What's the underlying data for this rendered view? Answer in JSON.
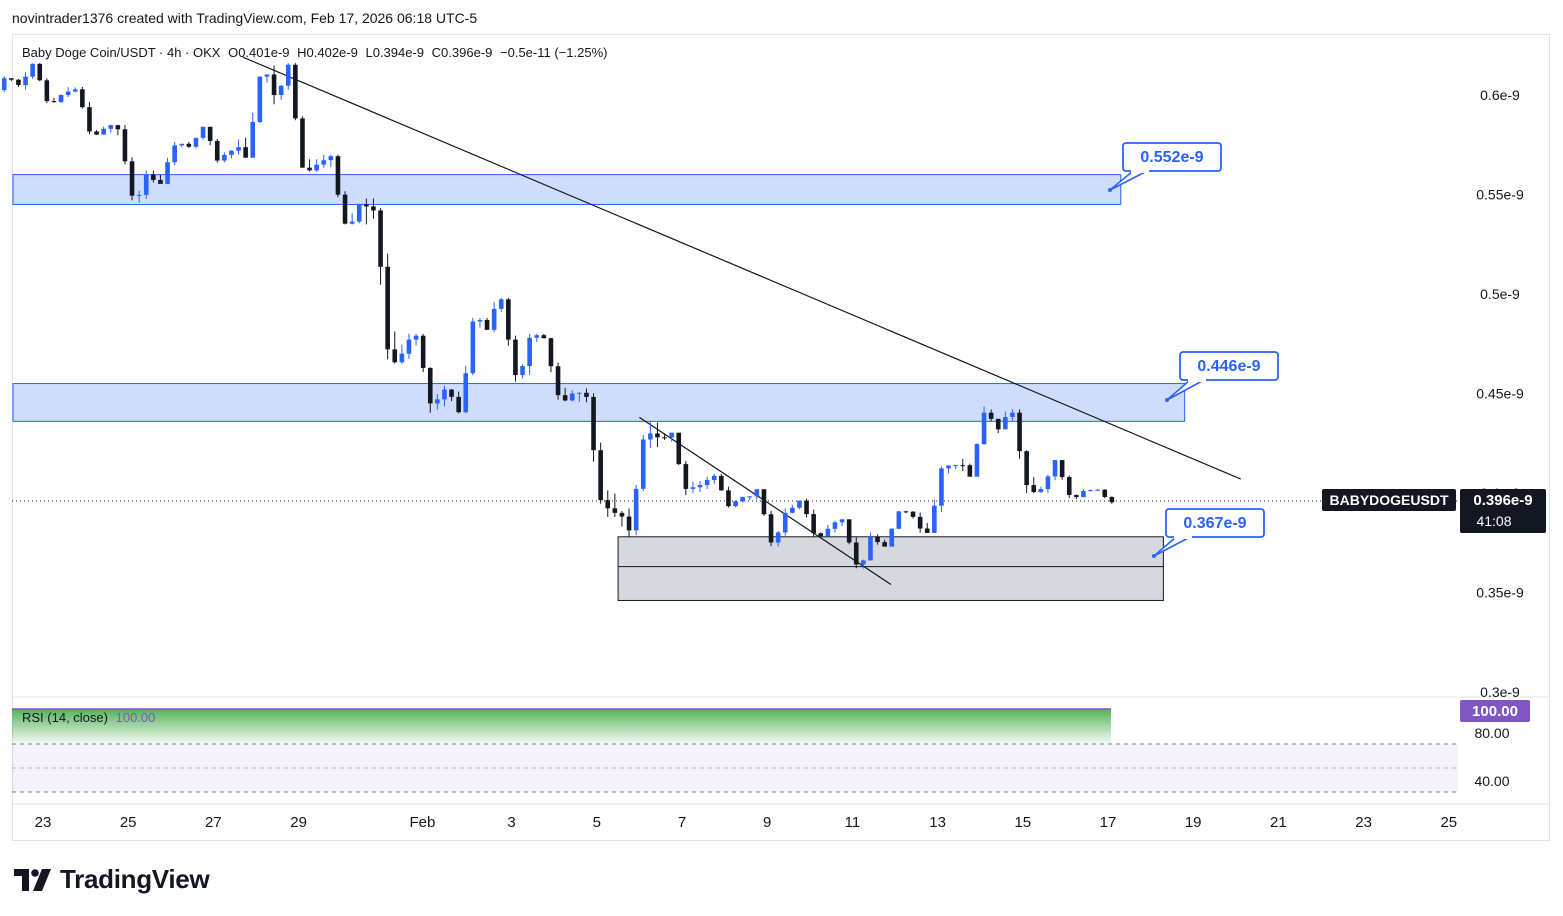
{
  "header": {
    "attribution": "novintrader1376 created with TradingView.com, Feb 17, 2026 06:18 UTC-5"
  },
  "legend": {
    "symbol": "Baby Doge Coin/USDT · 4h · OKX",
    "open": "O0.401e-9",
    "high": "H0.402e-9",
    "low": "L0.394e-9",
    "close": "C0.396e-9",
    "change": "−0.5e-11 (−1.25%)"
  },
  "rsi_legend": {
    "label": "RSI (14, close)",
    "value": "100.00"
  },
  "price_scale": {
    "ticks": [
      "0.6e-9",
      "0.55e-9",
      "0.5e-9",
      "0.45e-9",
      "0.4e-9",
      "0.35e-9",
      "0.3e-9"
    ],
    "current_price": "0.396e-9",
    "countdown": "41:08",
    "symbol_tag": "BABYDOGEUSDT"
  },
  "rsi_scale": {
    "ticks": [
      "80.00",
      "40.00"
    ],
    "current": "100.00"
  },
  "time_axis": {
    "labels": [
      "23",
      "25",
      "27",
      "29",
      "Feb",
      "3",
      "5",
      "7",
      "9",
      "11",
      "13",
      "15",
      "17",
      "19",
      "21",
      "23",
      "25"
    ]
  },
  "annotations": {
    "callout_top": "0.552e-9",
    "callout_mid": "0.446e-9",
    "callout_low": "0.367e-9"
  },
  "colors": {
    "up": "#2962ff",
    "down": "#131722",
    "zone_fill": "#cfdcfb",
    "zone_border": "#2962ff",
    "box_fill": "#d1d4dc",
    "rsi_line": "#7e57c2",
    "rsi_fill_top": "#4caf50"
  },
  "footer": {
    "brand": "TradingView"
  },
  "chart_data": {
    "type": "candlestick",
    "symbol": "Baby Doge Coin/USDT",
    "timeframe": "4h",
    "exchange": "OKX",
    "ylim": [
      3e-10,
      6.2e-10
    ],
    "x_range": [
      "Jan 23",
      "Feb 25"
    ],
    "candles_daily_approx": [
      {
        "date": "Jan 22",
        "open": 6.02e-10,
        "high": 6.1e-10,
        "low": 5.98e-10,
        "close": 6.05e-10
      },
      {
        "date": "Jan 23",
        "open": 6.05e-10,
        "high": 6.16e-10,
        "low": 5.96e-10,
        "close": 6e-10
      },
      {
        "date": "Jan 24",
        "open": 6e-10,
        "high": 6.04e-10,
        "low": 5.8e-10,
        "close": 5.83e-10
      },
      {
        "date": "Jan 25",
        "open": 5.83e-10,
        "high": 5.85e-10,
        "low": 5.46e-10,
        "close": 5.6e-10
      },
      {
        "date": "Jan 26",
        "open": 5.6e-10,
        "high": 5.78e-10,
        "low": 5.56e-10,
        "close": 5.74e-10
      },
      {
        "date": "Jan 27",
        "open": 5.74e-10,
        "high": 5.84e-10,
        "low": 5.66e-10,
        "close": 5.72e-10
      },
      {
        "date": "Jan 28",
        "open": 5.72e-10,
        "high": 6.16e-10,
        "low": 5.7e-10,
        "close": 6e-10
      },
      {
        "date": "Jan 29",
        "open": 6e-10,
        "high": 6.16e-10,
        "low": 5.6e-10,
        "close": 5.65e-10
      },
      {
        "date": "Jan 30",
        "open": 5.65e-10,
        "high": 5.7e-10,
        "low": 5.3e-10,
        "close": 5.45e-10
      },
      {
        "date": "Jan 31",
        "open": 5.45e-10,
        "high": 5.48e-10,
        "low": 4.65e-10,
        "close": 4.7e-10
      },
      {
        "date": "Feb 1",
        "open": 4.7e-10,
        "high": 4.8e-10,
        "low": 4.4e-10,
        "close": 4.52e-10
      },
      {
        "date": "Feb 2",
        "open": 4.52e-10,
        "high": 4.88e-10,
        "low": 4.4e-10,
        "close": 4.82e-10
      },
      {
        "date": "Feb 3",
        "open": 4.82e-10,
        "high": 4.98e-10,
        "low": 4.56e-10,
        "close": 4.78e-10
      },
      {
        "date": "Feb 4",
        "open": 4.78e-10,
        "high": 4.8e-10,
        "low": 4.46e-10,
        "close": 4.5e-10
      },
      {
        "date": "Feb 5",
        "open": 4.5e-10,
        "high": 4.53e-10,
        "low": 3.88e-10,
        "close": 3.9e-10
      },
      {
        "date": "Feb 6",
        "open": 3.9e-10,
        "high": 4.36e-10,
        "low": 3.78e-10,
        "close": 4.28e-10
      },
      {
        "date": "Feb 7",
        "open": 4.28e-10,
        "high": 4.3e-10,
        "low": 3.98e-10,
        "close": 4.04e-10
      },
      {
        "date": "Feb 8",
        "open": 4.04e-10,
        "high": 4.1e-10,
        "low": 3.92e-10,
        "close": 3.98e-10
      },
      {
        "date": "Feb 9",
        "open": 3.98e-10,
        "high": 4e-10,
        "low": 3.72e-10,
        "close": 3.9e-10
      },
      {
        "date": "Feb 10",
        "open": 3.9e-10,
        "high": 3.98e-10,
        "low": 3.78e-10,
        "close": 3.82e-10
      },
      {
        "date": "Feb 11",
        "open": 3.82e-10,
        "high": 3.86e-10,
        "low": 3.6e-10,
        "close": 3.78e-10
      },
      {
        "date": "Feb 12",
        "open": 3.78e-10,
        "high": 3.94e-10,
        "low": 3.74e-10,
        "close": 3.88e-10
      },
      {
        "date": "Feb 13",
        "open": 3.88e-10,
        "high": 4.14e-10,
        "low": 3.8e-10,
        "close": 4.14e-10
      },
      {
        "date": "Feb 14",
        "open": 4.14e-10,
        "high": 4.44e-10,
        "low": 4.1e-10,
        "close": 4.32e-10
      },
      {
        "date": "Feb 15",
        "open": 4.32e-10,
        "high": 4.42e-10,
        "low": 4e-10,
        "close": 4.02e-10
      },
      {
        "date": "Feb 16",
        "open": 4.02e-10,
        "high": 4.16e-10,
        "low": 3.96e-10,
        "close": 4.01e-10
      },
      {
        "date": "Feb 17",
        "open": 4.01e-10,
        "high": 4.02e-10,
        "low": 3.94e-10,
        "close": 3.96e-10
      }
    ],
    "zones": [
      {
        "from": 5.45e-10,
        "to": 5.6e-10,
        "label": "0.552e-9"
      },
      {
        "from": 4.36e-10,
        "to": 4.55e-10,
        "label": "0.446e-9"
      },
      {
        "from": 3.46e-10,
        "to": 3.78e-10,
        "label": "0.367e-9"
      }
    ],
    "trendlines": [
      {
        "from": {
          "date": "Jan 28",
          "price": 6.19e-10
        },
        "to": {
          "date": "Feb 20",
          "price": 4.07e-10
        }
      },
      {
        "from": {
          "date": "Feb 6",
          "price": 4.38e-10
        },
        "to": {
          "date": "Feb 12",
          "price": 3.54e-10
        }
      }
    ],
    "current_price": 3.96e-10,
    "rsi": {
      "period": 14,
      "value": 100,
      "levels": [
        70,
        30
      ],
      "ylim": [
        20,
        100
      ]
    }
  }
}
